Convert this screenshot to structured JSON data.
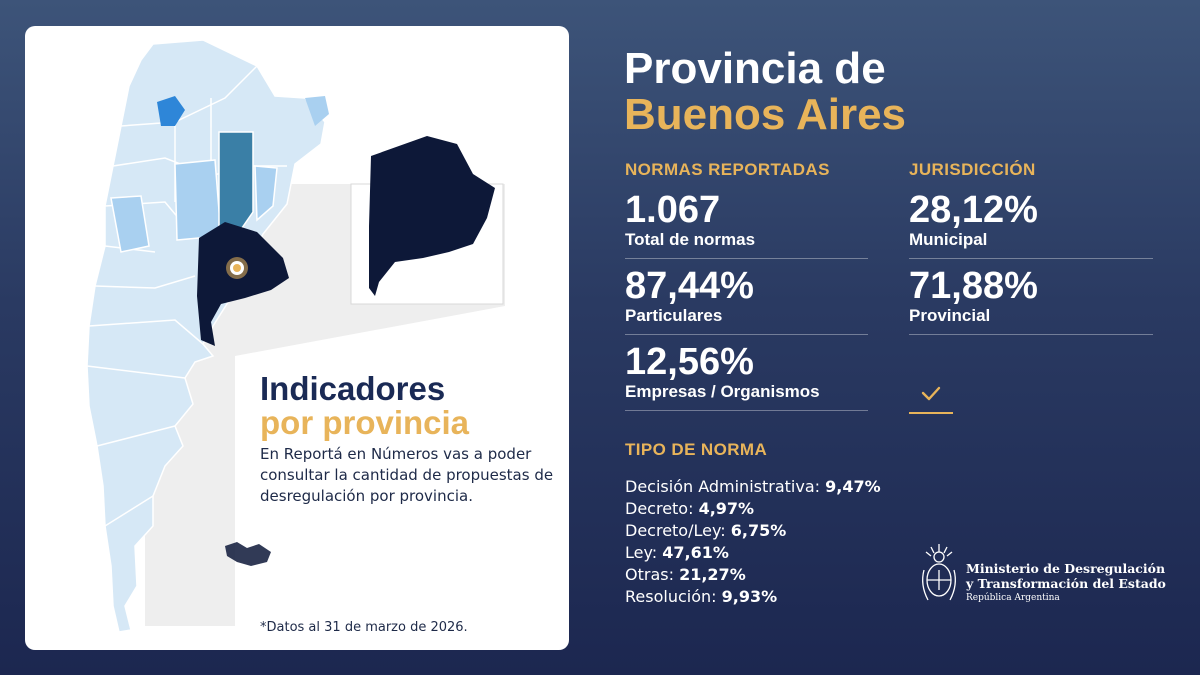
{
  "left_card": {
    "title_line1": "Indicadores",
    "title_line2": "por provincia",
    "description": "En Reportá en Números vas a poder consultar la cantidad de propuestas de desregulación por provincia.",
    "footnote": "*Datos al 31 de marzo de 2026."
  },
  "province": {
    "title_line1": "Provincia de",
    "title_line2": "Buenos Aires"
  },
  "normas": {
    "heading": "NORMAS REPORTADAS",
    "stats": [
      {
        "value": "1.067",
        "label": "Total de normas"
      },
      {
        "value": "87,44%",
        "label": "Particulares"
      },
      {
        "value": "12,56%",
        "label": "Empresas / Organismos"
      }
    ]
  },
  "jurisdiccion": {
    "heading": "JURISDICCIÓN",
    "stats": [
      {
        "value": "28,12%",
        "label": "Municipal"
      },
      {
        "value": "71,88%",
        "label": "Provincial"
      }
    ]
  },
  "tipo_norma": {
    "heading": "TIPO DE NORMA",
    "items": [
      {
        "label": "Decisión Administrativa:",
        "value": "9,47%"
      },
      {
        "label": "Decreto:",
        "value": "4,97%"
      },
      {
        "label": "Decreto/Ley:",
        "value": "6,75%"
      },
      {
        "label": "Ley:",
        "value": "47,61%"
      },
      {
        "label": "Otras:",
        "value": "21,27%"
      },
      {
        "label": "Resolución:",
        "value": "9,93%"
      }
    ]
  },
  "ministry": {
    "line1": "Ministerio de Desregulación",
    "line2": "y Transformación del Estado",
    "line3": "República Argentina"
  },
  "colors": {
    "accent_gold": "#e8b45a",
    "province_dark": "#0d1838",
    "map_light": "#d6e8f6",
    "map_mid": "#a9d0f0",
    "map_strong": "#2e86d8",
    "map_teal": "#3a7fa6",
    "bg_top": "#3d5479",
    "bg_bottom": "#1c2750"
  },
  "icons": [
    "check-icon",
    "coat-of-arms-icon",
    "location-marker-icon"
  ]
}
